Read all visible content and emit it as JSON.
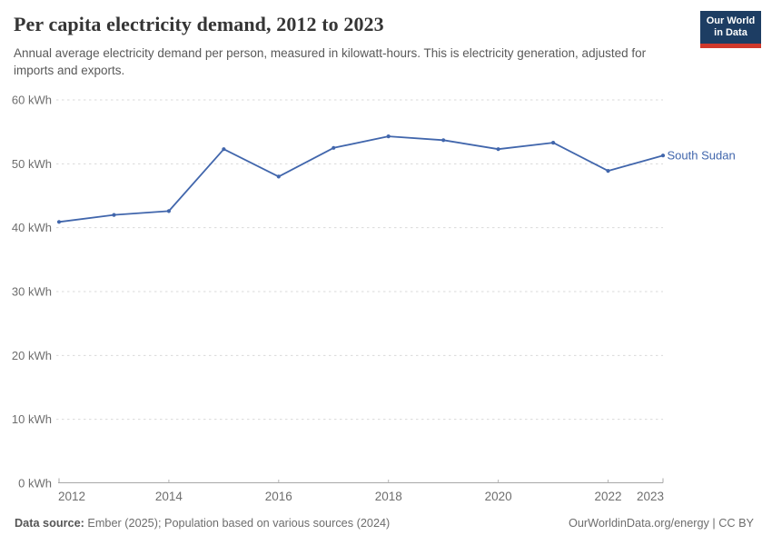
{
  "header": {
    "title": "Per capita electricity demand, 2012 to 2023",
    "subtitle": "Annual average electricity demand per person, measured in kilowatt-hours. This is electricity generation, adjusted for imports and exports.",
    "logo": {
      "line1": "Our World",
      "line2": "in Data",
      "bg_color": "#1d3d63",
      "accent_color": "#d0382b"
    }
  },
  "chart_data": {
    "type": "line",
    "title": "Per capita electricity demand, 2012 to 2023",
    "x": [
      2012,
      2013,
      2014,
      2015,
      2016,
      2017,
      2018,
      2019,
      2020,
      2021,
      2022,
      2023
    ],
    "series": [
      {
        "name": "South Sudan",
        "color": "#4166ac",
        "values": [
          40.9,
          42.0,
          42.6,
          52.3,
          48.0,
          52.5,
          54.3,
          53.7,
          52.3,
          53.3,
          48.9,
          51.3
        ]
      }
    ],
    "xlabel": "",
    "ylabel": "",
    "ylim": [
      0,
      60
    ],
    "yticks": [
      0,
      10,
      20,
      30,
      40,
      50,
      60
    ],
    "ytick_suffix": " kWh",
    "xticks": [
      2012,
      2014,
      2016,
      2018,
      2020,
      2022,
      2023
    ],
    "grid": "horizontal-dashed",
    "legend_position": "line-end-label",
    "grid_color": "#dadada",
    "axis_color": "#a8a8a8",
    "tick_label_color": "#6e6e6e"
  },
  "footer": {
    "source_label": "Data source:",
    "source_text": "Ember (2025); Population based on various sources (2024)",
    "credit": "OurWorldinData.org/energy | CC BY"
  }
}
